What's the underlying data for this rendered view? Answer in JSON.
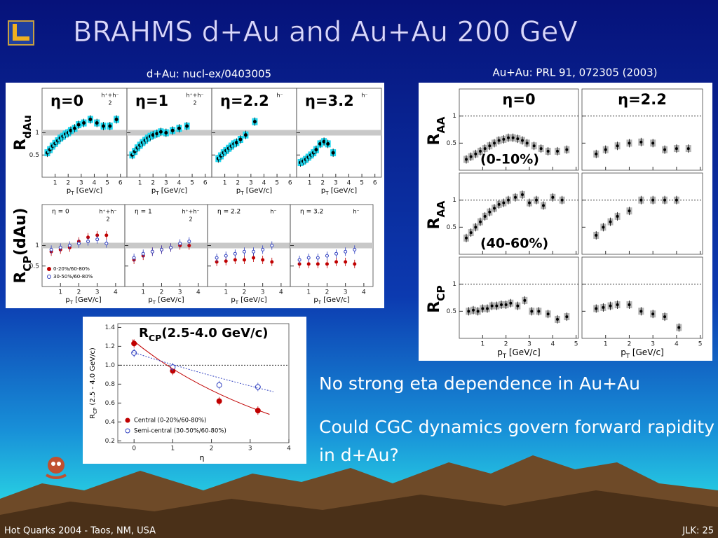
{
  "title": "BRAHMS d+Au and Au+Au 200 GeV",
  "left_figure": {
    "caption": "d+Au: nucl-ex/0403005",
    "x_label": {
      "main": "p",
      "sub": "T",
      "rest": " [GeV/c]"
    },
    "rows": [
      {
        "label": {
          "main": "R",
          "sub": "dAu"
        },
        "xlim": [
          0,
          6.5
        ],
        "xticks": [
          1,
          2,
          3,
          4,
          5,
          6
        ],
        "ylim": [
          0,
          2
        ],
        "yticks": [
          0.5,
          1
        ],
        "reference_line": 1,
        "panels": [
          {
            "label": "η=0",
            "species": {
              "num": "h⁺+h⁻",
              "den": "2"
            },
            "series": [
              {
                "color": "#000000",
                "band_color": "#20d8f0",
                "x": [
                  0.4,
                  0.6,
                  0.8,
                  1.0,
                  1.2,
                  1.4,
                  1.6,
                  1.8,
                  2.0,
                  2.2,
                  2.5,
                  2.8,
                  3.2,
                  3.7,
                  4.2,
                  4.7,
                  5.2,
                  5.7
                ],
                "values": [
                  0.55,
                  0.62,
                  0.7,
                  0.76,
                  0.82,
                  0.88,
                  0.92,
                  0.97,
                  1.0,
                  1.05,
                  1.1,
                  1.18,
                  1.22,
                  1.3,
                  1.22,
                  1.15,
                  1.15,
                  1.3
                ]
              }
            ]
          },
          {
            "label": "η=1",
            "species": {
              "num": "h⁺+h⁻",
              "den": "2"
            },
            "series": [
              {
                "color": "#000000",
                "band_color": "#20d8f0",
                "x": [
                  0.4,
                  0.6,
                  0.8,
                  1.0,
                  1.2,
                  1.4,
                  1.6,
                  1.8,
                  2.0,
                  2.3,
                  2.6,
                  3.0,
                  3.5,
                  4.0,
                  4.6
                ],
                "values": [
                  0.5,
                  0.58,
                  0.66,
                  0.72,
                  0.78,
                  0.83,
                  0.88,
                  0.92,
                  0.95,
                  0.98,
                  1.02,
                  1.0,
                  1.05,
                  1.1,
                  1.15
                ]
              }
            ]
          },
          {
            "label": "η=2.2",
            "species": {
              "num": "h⁻"
            },
            "series": [
              {
                "color": "#000000",
                "band_color": "#20d8f0",
                "x": [
                  0.5,
                  0.7,
                  0.9,
                  1.1,
                  1.3,
                  1.5,
                  1.7,
                  1.9,
                  2.2,
                  2.6,
                  3.3
                ],
                "values": [
                  0.42,
                  0.48,
                  0.55,
                  0.6,
                  0.65,
                  0.7,
                  0.75,
                  0.78,
                  0.85,
                  0.95,
                  1.25
                ]
              }
            ]
          },
          {
            "label": "η=3.2",
            "species": {
              "num": "h⁻"
            },
            "series": [
              {
                "color": "#000000",
                "band_color": "#20d8f0",
                "x": [
                  0.3,
                  0.5,
                  0.7,
                  0.9,
                  1.1,
                  1.3,
                  1.5,
                  1.8,
                  2.1,
                  2.4,
                  2.8
                ],
                "values": [
                  0.33,
                  0.36,
                  0.4,
                  0.45,
                  0.5,
                  0.55,
                  0.62,
                  0.75,
                  0.8,
                  0.75,
                  0.55
                ]
              }
            ]
          }
        ]
      },
      {
        "label": {
          "main": "R",
          "sub": "CP",
          "rest": "(dAu)"
        },
        "xlim": [
          0,
          4.5
        ],
        "xticks": [
          1,
          2,
          3,
          4
        ],
        "ylim": [
          0,
          2
        ],
        "yticks": [
          0.5,
          1
        ],
        "reference_line": 1,
        "legend": [
          {
            "name": "0-20%/60-80%",
            "color": "#c00000",
            "filled": true
          },
          {
            "name": "30-50%/60-80%",
            "color": "#3040c0",
            "filled": false
          }
        ],
        "panels": [
          {
            "label": "η = 0",
            "species": {
              "num": "h⁺+h⁻",
              "den": "2"
            },
            "series": [
              {
                "x": [
                  0.5,
                  1,
                  1.5,
                  2,
                  2.5,
                  3,
                  3.5
                ],
                "values": [
                  0.85,
                  0.9,
                  0.95,
                  1.1,
                  1.2,
                  1.25,
                  1.25
                ]
              },
              {
                "x": [
                  0.5,
                  1,
                  1.5,
                  2,
                  2.5,
                  3,
                  3.5
                ],
                "values": [
                  0.9,
                  0.95,
                  1.0,
                  1.05,
                  1.1,
                  1.15,
                  1.05
                ]
              }
            ]
          },
          {
            "label": "η = 1",
            "species": {
              "num": "h⁺+h⁻",
              "den": "2"
            },
            "series": [
              {
                "x": [
                  0.5,
                  1,
                  1.5,
                  2,
                  2.5,
                  3,
                  3.5
                ],
                "values": [
                  0.65,
                  0.75,
                  0.85,
                  0.9,
                  0.95,
                  1.0,
                  1.0
                ]
              },
              {
                "x": [
                  0.5,
                  1,
                  1.5,
                  2,
                  2.5,
                  3,
                  3.5
                ],
                "values": [
                  0.7,
                  0.8,
                  0.85,
                  0.9,
                  0.95,
                  1.05,
                  1.1
                ]
              }
            ]
          },
          {
            "label": "η = 2.2",
            "species": {
              "num": "h⁻"
            },
            "series": [
              {
                "x": [
                  0.5,
                  1,
                  1.5,
                  2,
                  2.5,
                  3,
                  3.5
                ],
                "values": [
                  0.6,
                  0.62,
                  0.65,
                  0.65,
                  0.7,
                  0.65,
                  0.6
                ]
              },
              {
                "x": [
                  0.5,
                  1,
                  1.5,
                  2,
                  2.5,
                  3,
                  3.5
                ],
                "values": [
                  0.7,
                  0.75,
                  0.8,
                  0.85,
                  0.85,
                  0.9,
                  1.0
                ]
              }
            ]
          },
          {
            "label": "η = 3.2",
            "species": {
              "num": "h⁻"
            },
            "series": [
              {
                "x": [
                  0.5,
                  1,
                  1.5,
                  2,
                  2.5,
                  3,
                  3.5
                ],
                "values": [
                  0.55,
                  0.55,
                  0.55,
                  0.55,
                  0.6,
                  0.6,
                  0.55
                ]
              },
              {
                "x": [
                  0.5,
                  1,
                  1.5,
                  2,
                  2.5,
                  3,
                  3.5
                ],
                "values": [
                  0.65,
                  0.7,
                  0.7,
                  0.75,
                  0.8,
                  0.85,
                  0.9
                ]
              }
            ]
          }
        ]
      }
    ]
  },
  "right_figure": {
    "caption": "Au+Au: PRL 91, 072305 (2003)",
    "column_labels": [
      "η=0",
      "η=2.2"
    ],
    "x_label": {
      "main": "p",
      "sub": "T",
      "rest": " [GeV/c]"
    },
    "xlim": [
      0,
      5.1
    ],
    "xticks": [
      1,
      2,
      3,
      4,
      5
    ],
    "ylim": [
      0,
      1.5
    ],
    "yticks": [
      0.5,
      1
    ],
    "reference_line": 1,
    "rows": [
      {
        "label": {
          "main": "R",
          "sub": "AA"
        },
        "annotation": "(0-10%)",
        "panels": [
          {
            "series": [
              {
                "color": "#000000",
                "band_color": "#b4b4b4",
                "x": [
                  0.3,
                  0.5,
                  0.7,
                  0.9,
                  1.1,
                  1.3,
                  1.5,
                  1.7,
                  1.9,
                  2.1,
                  2.3,
                  2.5,
                  2.7,
                  2.9,
                  3.2,
                  3.5,
                  3.8,
                  4.2,
                  4.6
                ],
                "values": [
                  0.2,
                  0.25,
                  0.3,
                  0.35,
                  0.4,
                  0.45,
                  0.5,
                  0.55,
                  0.57,
                  0.6,
                  0.6,
                  0.58,
                  0.55,
                  0.5,
                  0.45,
                  0.4,
                  0.35,
                  0.35,
                  0.38
                ]
              }
            ]
          },
          {
            "series": [
              {
                "color": "#000000",
                "band_color": "#b4b4b4",
                "x": [
                  0.6,
                  1.0,
                  1.5,
                  2.0,
                  2.5,
                  3.0,
                  3.5,
                  4.0,
                  4.5
                ],
                "values": [
                  0.3,
                  0.38,
                  0.45,
                  0.5,
                  0.52,
                  0.5,
                  0.38,
                  0.4,
                  0.4
                ]
              }
            ]
          }
        ]
      },
      {
        "label": {
          "main": "R",
          "sub": "AA"
        },
        "annotation": "(40-60%)",
        "panels": [
          {
            "series": [
              {
                "color": "#000000",
                "band_color": "#b4b4b4",
                "x": [
                  0.3,
                  0.5,
                  0.7,
                  0.9,
                  1.1,
                  1.3,
                  1.5,
                  1.7,
                  1.9,
                  2.1,
                  2.4,
                  2.7,
                  3.0,
                  3.3,
                  3.6,
                  4.0,
                  4.4
                ],
                "values": [
                  0.3,
                  0.4,
                  0.5,
                  0.6,
                  0.7,
                  0.78,
                  0.85,
                  0.92,
                  0.95,
                  1.0,
                  1.05,
                  1.1,
                  0.95,
                  1.0,
                  0.9,
                  1.05,
                  1.0
                ]
              }
            ]
          },
          {
            "series": [
              {
                "color": "#000000",
                "band_color": "#b4b4b4",
                "x": [
                  0.6,
                  0.9,
                  1.2,
                  1.5,
                  2.0,
                  2.5,
                  3.0,
                  3.5,
                  4.0
                ],
                "values": [
                  0.35,
                  0.5,
                  0.6,
                  0.7,
                  0.8,
                  1.0,
                  1.0,
                  1.0,
                  1.0
                ]
              }
            ]
          }
        ]
      },
      {
        "label": {
          "main": "R",
          "sub": "CP"
        },
        "panels": [
          {
            "series": [
              {
                "color": "#000000",
                "band_color": "#b4b4b4",
                "x": [
                  0.4,
                  0.6,
                  0.8,
                  1.0,
                  1.2,
                  1.4,
                  1.6,
                  1.8,
                  2.0,
                  2.2,
                  2.5,
                  2.8,
                  3.1,
                  3.4,
                  3.8,
                  4.2,
                  4.6
                ],
                "values": [
                  0.5,
                  0.52,
                  0.5,
                  0.55,
                  0.55,
                  0.6,
                  0.6,
                  0.62,
                  0.62,
                  0.65,
                  0.6,
                  0.7,
                  0.5,
                  0.5,
                  0.45,
                  0.35,
                  0.4
                ]
              }
            ]
          },
          {
            "series": [
              {
                "color": "#000000",
                "band_color": "#b4b4b4",
                "x": [
                  0.6,
                  0.9,
                  1.2,
                  1.5,
                  2.0,
                  2.5,
                  3.0,
                  3.5,
                  4.1
                ],
                "values": [
                  0.55,
                  0.57,
                  0.6,
                  0.62,
                  0.62,
                  0.5,
                  0.45,
                  0.4,
                  0.2
                ]
              }
            ]
          }
        ]
      }
    ]
  },
  "rcp_figure": {
    "type": "scatter",
    "title": {
      "main": "R",
      "sub": "CP",
      "rest": "(2.5-4.0 GeV/c)"
    },
    "y_label": {
      "main": "R",
      "sub": "CP",
      "rest": " (2.5 - 4.0 GeV/c)"
    },
    "x_label": "η",
    "xlim": [
      -0.42,
      4
    ],
    "xticks": [
      0,
      1,
      2,
      3,
      4
    ],
    "ylim": [
      0.18,
      1.44
    ],
    "yticks": [
      0.2,
      0.4,
      0.6,
      0.8,
      {
        "value": 1,
        "label": "1.0"
      },
      1.2,
      1.4
    ],
    "reference_line": 1,
    "series": [
      {
        "name": "Central (0-20%/60-80%)",
        "color": "#c00000",
        "filled": true,
        "x": [
          0,
          1,
          2.2,
          3.2
        ],
        "values": [
          1.23,
          0.94,
          0.62,
          0.52
        ]
      },
      {
        "name": "Semi-central (30-50%/60-80%)",
        "color": "#3040c0",
        "filled": false,
        "x": [
          0,
          1,
          2.2,
          3.2
        ],
        "values": [
          1.13,
          0.98,
          0.79,
          0.77
        ]
      }
    ]
  },
  "bullets": [
    "No strong eta dependence in Au+Au",
    "Could CGC dynamics govern forward rapidity in d+Au?"
  ],
  "footer": {
    "left": "Hot Quarks 2004 - Taos, NM, USA",
    "right": "JLK: 25"
  }
}
